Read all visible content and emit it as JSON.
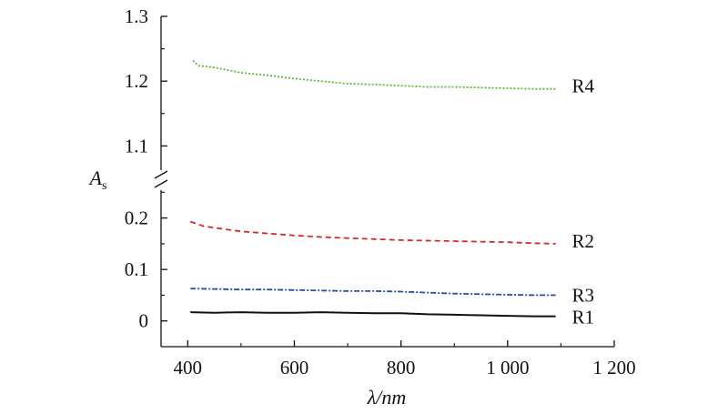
{
  "chart_data": {
    "type": "line",
    "title": "",
    "xlabel": "λ/nm",
    "ylabel": "As",
    "ylabel_parts": {
      "main": "A",
      "sub": "s"
    },
    "xlim": [
      350,
      1200
    ],
    "ylim_lower": [
      -0.05,
      0.27
    ],
    "ylim_upper": [
      1.05,
      1.3
    ],
    "axis_break": true,
    "grid": false,
    "legend": "inline labels at right end of each series",
    "x_ticks": [
      {
        "value": 400,
        "label": "400"
      },
      {
        "value": 600,
        "label": "600"
      },
      {
        "value": 800,
        "label": "800"
      },
      {
        "value": 1000,
        "label": "1 000"
      },
      {
        "value": 1200,
        "label": "1 200"
      }
    ],
    "y_ticks_lower": [
      {
        "value": 0,
        "label": "0"
      },
      {
        "value": 0.1,
        "label": "0.1"
      },
      {
        "value": 0.2,
        "label": "0.2"
      }
    ],
    "y_ticks_upper": [
      {
        "value": 1.1,
        "label": "1.1"
      },
      {
        "value": 1.2,
        "label": "1.2"
      },
      {
        "value": 1.3,
        "label": "1.3"
      }
    ],
    "series": [
      {
        "name": "R4",
        "color": "#5cb82e",
        "dash": "dotted",
        "segment": "upper",
        "x": [
          410,
          420,
          450,
          500,
          550,
          600,
          650,
          700,
          750,
          800,
          850,
          900,
          950,
          1000,
          1050,
          1090
        ],
        "y": [
          1.232,
          1.224,
          1.221,
          1.213,
          1.209,
          1.204,
          1.2,
          1.196,
          1.195,
          1.193,
          1.191,
          1.191,
          1.19,
          1.189,
          1.188,
          1.188
        ]
      },
      {
        "name": "R2",
        "color": "#d42a2a",
        "dash": "dashed",
        "segment": "lower",
        "x": [
          405,
          430,
          470,
          500,
          550,
          600,
          650,
          700,
          750,
          800,
          850,
          900,
          950,
          1000,
          1050,
          1090
        ],
        "y": [
          0.193,
          0.184,
          0.178,
          0.174,
          0.17,
          0.166,
          0.163,
          0.161,
          0.159,
          0.157,
          0.156,
          0.155,
          0.154,
          0.153,
          0.151,
          0.15
        ]
      },
      {
        "name": "R3",
        "color": "#2a4fa8",
        "dash": "dashdot",
        "segment": "lower",
        "x": [
          405,
          450,
          500,
          550,
          600,
          650,
          700,
          750,
          800,
          850,
          900,
          950,
          1000,
          1050,
          1090
        ],
        "y": [
          0.063,
          0.062,
          0.061,
          0.061,
          0.06,
          0.059,
          0.058,
          0.058,
          0.057,
          0.055,
          0.053,
          0.052,
          0.051,
          0.05,
          0.05
        ]
      },
      {
        "name": "R1",
        "color": "#111111",
        "dash": "solid",
        "segment": "lower",
        "x": [
          405,
          450,
          500,
          550,
          600,
          650,
          700,
          750,
          800,
          850,
          900,
          950,
          1000,
          1050,
          1090
        ],
        "y": [
          0.017,
          0.016,
          0.017,
          0.016,
          0.016,
          0.017,
          0.016,
          0.015,
          0.015,
          0.013,
          0.012,
          0.011,
          0.01,
          0.009,
          0.009
        ]
      }
    ]
  }
}
